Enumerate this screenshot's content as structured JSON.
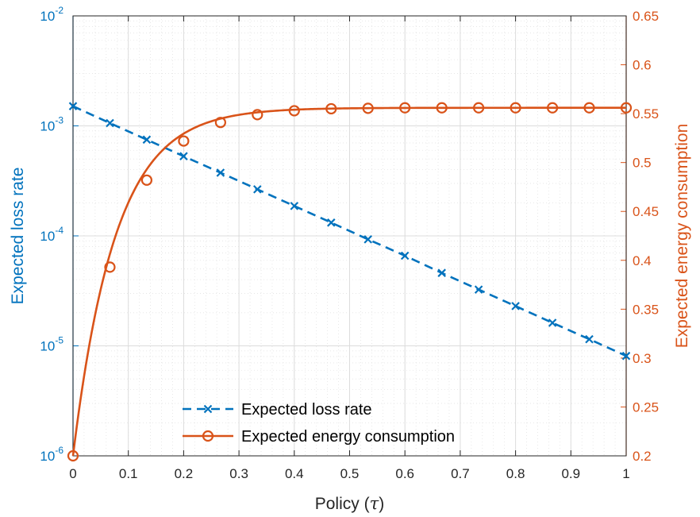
{
  "chart_data": {
    "type": "line",
    "x": [
      0,
      0.0667,
      0.1333,
      0.2,
      0.2667,
      0.3333,
      0.4,
      0.4667,
      0.5333,
      0.6,
      0.6667,
      0.7333,
      0.8,
      0.8667,
      0.9333,
      1.0
    ],
    "xlim": [
      0,
      1
    ],
    "xticks": [
      "0",
      "0.1",
      "0.2",
      "0.3",
      "0.4",
      "0.5",
      "0.6",
      "0.7",
      "0.8",
      "0.9",
      "1"
    ],
    "xlabel": "Policy (",
    "xlabel_symbol": "τ",
    "xlabel_suffix": ")",
    "y_left": {
      "label": "Expected loss rate",
      "scale": "log",
      "lim": [
        1e-06,
        0.01
      ],
      "ticks": [
        {
          "base": "10",
          "exp": "-6"
        },
        {
          "base": "10",
          "exp": "-5"
        },
        {
          "base": "10",
          "exp": "-4"
        },
        {
          "base": "10",
          "exp": "-3"
        },
        {
          "base": "10",
          "exp": "-2"
        }
      ],
      "color": "#0072BD"
    },
    "y_right": {
      "label": "Expected energy consumption",
      "scale": "linear",
      "lim": [
        0.2,
        0.65
      ],
      "ticks": [
        "0.2",
        "0.25",
        "0.3",
        "0.35",
        "0.4",
        "0.45",
        "0.5",
        "0.55",
        "0.6",
        "0.65"
      ],
      "color": "#D95319"
    },
    "series": [
      {
        "name": "Expected loss rate",
        "axis": "left",
        "line_style": "dashed",
        "marker": "x",
        "color": "#0072BD",
        "values": [
          0.00151,
          0.00106,
          0.00075,
          0.00053,
          0.000375,
          0.000265,
          0.000187,
          0.000132,
          9.3e-05,
          6.6e-05,
          4.6e-05,
          3.25e-05,
          2.3e-05,
          1.62e-05,
          1.15e-05,
          8.1e-06
        ]
      },
      {
        "name": "Expected energy consumption",
        "axis": "right",
        "line_style": "solid",
        "marker": "o",
        "color": "#D95319",
        "asymptote": 0.556,
        "start": 0.2,
        "decay": 13,
        "values": [
          0.2,
          0.393,
          0.482,
          0.522,
          0.541,
          0.549,
          0.553,
          0.555,
          0.5555,
          0.556,
          0.556,
          0.556,
          0.556,
          0.556,
          0.556,
          0.556
        ]
      }
    ],
    "grid": true,
    "legend_position": "bottom-center"
  }
}
